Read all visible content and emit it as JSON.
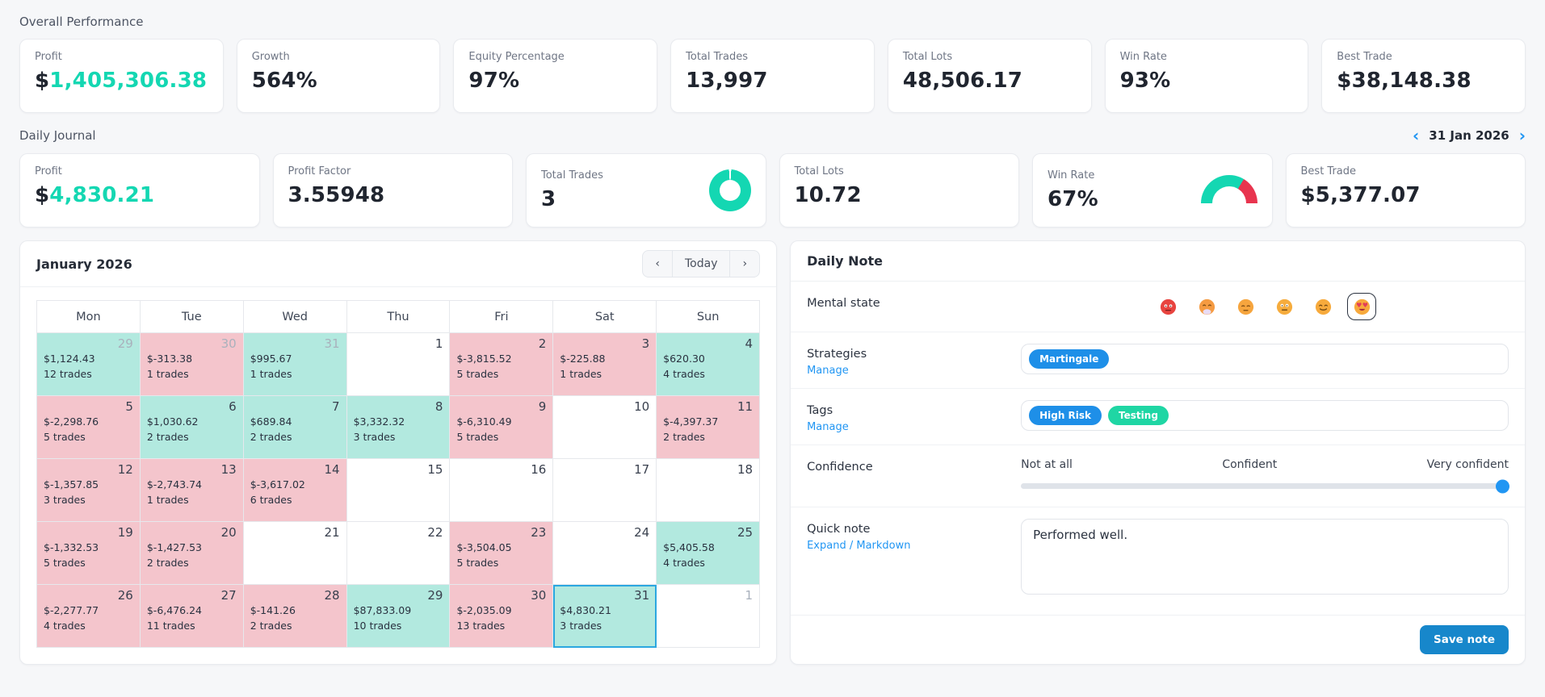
{
  "colors": {
    "accent": "#14d7b2",
    "link": "#2196f3",
    "win-bg": "#b2e9df",
    "loss-bg": "#f4c5cc",
    "sel": "#2ba7e0",
    "chip-blue": "#1e8fe8",
    "chip-teal": "#1fd6a4",
    "save": "#1787cb",
    "gauge-red": "#e8344e"
  },
  "overall": {
    "title": "Overall Performance",
    "cards": [
      {
        "label": "Profit",
        "currency": "$",
        "value": "1,405,306.38",
        "accent": true
      },
      {
        "label": "Growth",
        "value": "564%"
      },
      {
        "label": "Equity Percentage",
        "value": "97%"
      },
      {
        "label": "Total Trades",
        "value": "13,997"
      },
      {
        "label": "Total Lots",
        "value": "48,506.17"
      },
      {
        "label": "Win Rate",
        "value": "93%"
      },
      {
        "label": "Best Trade",
        "value": "$38,148.38"
      }
    ]
  },
  "daily": {
    "title": "Daily Journal",
    "nav": {
      "prev": "‹",
      "date": "31 Jan 2026",
      "next": "›"
    },
    "cards": [
      {
        "label": "Profit",
        "currency": "$",
        "value": "4,830.21",
        "accent": true
      },
      {
        "label": "Profit Factor",
        "value": "3.55948"
      },
      {
        "label": "Total Trades",
        "value": "3",
        "chart": "donut"
      },
      {
        "label": "Total Lots",
        "value": "10.72"
      },
      {
        "label": "Win Rate",
        "value": "67%",
        "chart": "gauge",
        "win_pct": 67
      },
      {
        "label": "Best Trade",
        "value": "$5,377.07"
      }
    ]
  },
  "calendar": {
    "title": "January 2026",
    "nav": {
      "prev": "‹",
      "today_label": "Today",
      "next": "›"
    },
    "weekdays": [
      "Mon",
      "Tue",
      "Wed",
      "Thu",
      "Fri",
      "Sat",
      "Sun"
    ],
    "weeks": [
      [
        {
          "day": "29",
          "muted": true,
          "amount": "$1,124.43",
          "trades": "12 trades",
          "type": "win"
        },
        {
          "day": "30",
          "muted": true,
          "amount": "$-313.38",
          "trades": "1 trades",
          "type": "loss"
        },
        {
          "day": "31",
          "muted": true,
          "amount": "$995.67",
          "trades": "1 trades",
          "type": "win"
        },
        {
          "day": "1",
          "type": "none"
        },
        {
          "day": "2",
          "amount": "$-3,815.52",
          "trades": "5 trades",
          "type": "loss"
        },
        {
          "day": "3",
          "amount": "$-225.88",
          "trades": "1 trades",
          "type": "loss"
        },
        {
          "day": "4",
          "amount": "$620.30",
          "trades": "4 trades",
          "type": "win"
        }
      ],
      [
        {
          "day": "5",
          "amount": "$-2,298.76",
          "trades": "5 trades",
          "type": "loss"
        },
        {
          "day": "6",
          "amount": "$1,030.62",
          "trades": "2 trades",
          "type": "win"
        },
        {
          "day": "7",
          "amount": "$689.84",
          "trades": "2 trades",
          "type": "win"
        },
        {
          "day": "8",
          "amount": "$3,332.32",
          "trades": "3 trades",
          "type": "win"
        },
        {
          "day": "9",
          "amount": "$-6,310.49",
          "trades": "5 trades",
          "type": "loss"
        },
        {
          "day": "10",
          "type": "none"
        },
        {
          "day": "11",
          "amount": "$-4,397.37",
          "trades": "2 trades",
          "type": "loss"
        }
      ],
      [
        {
          "day": "12",
          "amount": "$-1,357.85",
          "trades": "3 trades",
          "type": "loss"
        },
        {
          "day": "13",
          "amount": "$-2,743.74",
          "trades": "1 trades",
          "type": "loss"
        },
        {
          "day": "14",
          "amount": "$-3,617.02",
          "trades": "6 trades",
          "type": "loss"
        },
        {
          "day": "15",
          "type": "none"
        },
        {
          "day": "16",
          "type": "none"
        },
        {
          "day": "17",
          "type": "none"
        },
        {
          "day": "18",
          "type": "none"
        }
      ],
      [
        {
          "day": "19",
          "amount": "$-1,332.53",
          "trades": "5 trades",
          "type": "loss"
        },
        {
          "day": "20",
          "amount": "$-1,427.53",
          "trades": "2 trades",
          "type": "loss"
        },
        {
          "day": "21",
          "type": "none"
        },
        {
          "day": "22",
          "type": "none"
        },
        {
          "day": "23",
          "amount": "$-3,504.05",
          "trades": "5 trades",
          "type": "loss"
        },
        {
          "day": "24",
          "type": "none"
        },
        {
          "day": "25",
          "amount": "$5,405.58",
          "trades": "4 trades",
          "type": "win"
        }
      ],
      [
        {
          "day": "26",
          "amount": "$-2,277.77",
          "trades": "4 trades",
          "type": "loss"
        },
        {
          "day": "27",
          "amount": "$-6,476.24",
          "trades": "11 trades",
          "type": "loss"
        },
        {
          "day": "28",
          "amount": "$-141.26",
          "trades": "2 trades",
          "type": "loss"
        },
        {
          "day": "29",
          "amount": "$87,833.09",
          "trades": "10 trades",
          "type": "win"
        },
        {
          "day": "30",
          "amount": "$-2,035.09",
          "trades": "13 trades",
          "type": "loss"
        },
        {
          "day": "31",
          "amount": "$4,830.21",
          "trades": "3 trades",
          "type": "win",
          "selected": true
        },
        {
          "day": "1",
          "muted": true,
          "type": "none"
        }
      ]
    ]
  },
  "note": {
    "title": "Daily Note",
    "mental": {
      "label": "Mental state",
      "emojis": [
        "angry-emoji",
        "exhaling-emoji",
        "pensive-emoji",
        "neutral-emoji",
        "smiling-emoji",
        "heart-eyes-emoji"
      ],
      "selected_index": 5
    },
    "strategies": {
      "label": "Strategies",
      "manage": "Manage",
      "chips": [
        {
          "text": "Martingale",
          "color": "blue"
        }
      ]
    },
    "tags": {
      "label": "Tags",
      "manage": "Manage",
      "chips": [
        {
          "text": "High Risk",
          "color": "blue"
        },
        {
          "text": "Testing",
          "color": "teal"
        }
      ]
    },
    "confidence": {
      "label": "Confidence",
      "scale": [
        "Not at all",
        "Confident",
        "Very confident"
      ],
      "value_pct": 100
    },
    "quick": {
      "label": "Quick note",
      "link": "Expand / Markdown",
      "text": "Performed well."
    },
    "save_label": "Save note"
  }
}
